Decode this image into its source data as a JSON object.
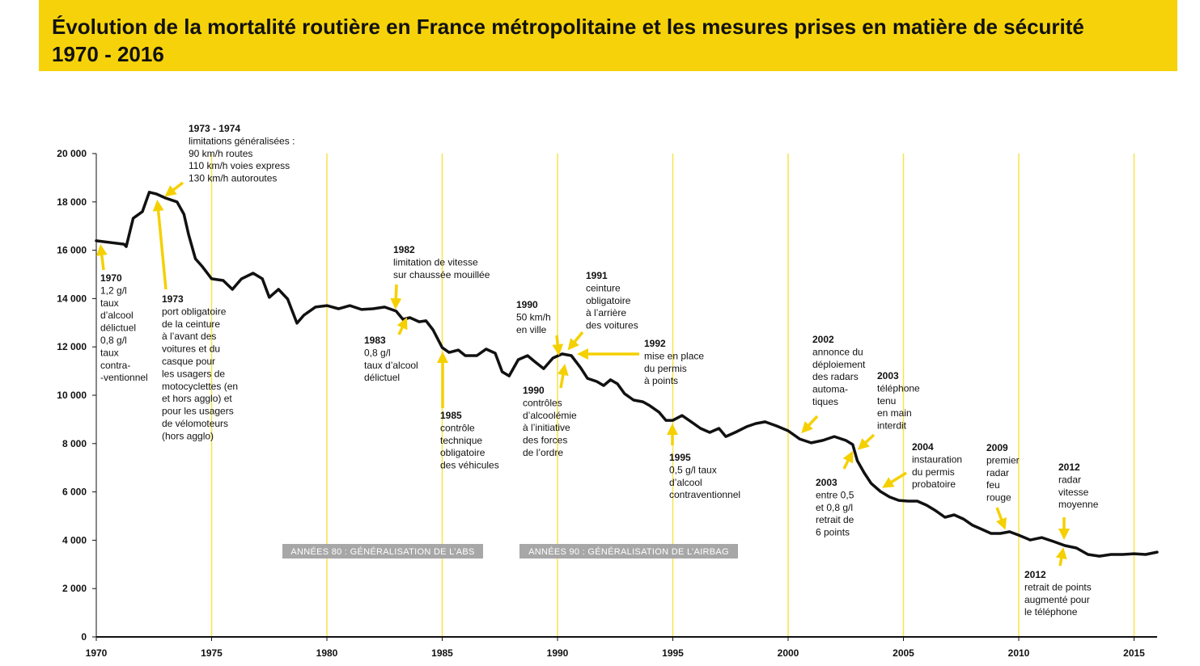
{
  "chart_data": {
    "type": "line",
    "title": "Évolution de la mortalité routière en France métropolitaine et les mesures prises en matière de sécurité",
    "subtitle": "1970 - 2016",
    "color": "#111111",
    "grid_color": "#f7e34a",
    "grid": true,
    "xlim": [
      1970,
      2016
    ],
    "xticks": [
      1970,
      1975,
      1980,
      1985,
      1990,
      1995,
      2000,
      2005,
      2010,
      2015
    ],
    "ylim": [
      0,
      20000
    ],
    "yticks": [
      0,
      {
        "value": 2000,
        "label": "2 000"
      },
      {
        "value": 4000,
        "label": "4 000"
      },
      {
        "value": 6000,
        "label": "6 000"
      },
      {
        "value": 8000,
        "label": "8 000"
      },
      {
        "value": 10000,
        "label": "10 000"
      },
      {
        "value": 12000,
        "label": "12 000"
      },
      {
        "value": 14000,
        "label": "14 000"
      },
      {
        "value": 16000,
        "label": "16 000"
      },
      {
        "value": 18000,
        "label": "18 000"
      },
      {
        "value": 20000,
        "label": "20 000"
      }
    ],
    "x": [
      1970,
      1971.2,
      1971.3,
      1971.6,
      1972,
      1972.3,
      1972.6,
      1973,
      1973.5,
      1973.8,
      1974,
      1974.3,
      1974.6,
      1975,
      1975.5,
      1975.9,
      1976.3,
      1976.8,
      1977.2,
      1977.5,
      1977.9,
      1978.3,
      1978.7,
      1979,
      1979.5,
      1980,
      1980.5,
      1981,
      1981.5,
      1982,
      1982.5,
      1983,
      1983.3,
      1983.6,
      1984,
      1984.3,
      1984.6,
      1985,
      1985.3,
      1985.7,
      1986,
      1986.5,
      1986.9,
      1987.3,
      1987.6,
      1987.9,
      1988.3,
      1988.7,
      1989,
      1989.4,
      1989.8,
      1990.2,
      1990.6,
      1991,
      1991.3,
      1991.7,
      1992,
      1992.3,
      1992.6,
      1992.9,
      1993.3,
      1993.7,
      1994,
      1994.4,
      1994.7,
      1995,
      1995.4,
      1995.8,
      1996.2,
      1996.6,
      1997,
      1997.3,
      1997.7,
      1998.2,
      1998.6,
      1999,
      1999.5,
      2000,
      2000.5,
      2001,
      2001.5,
      2002,
      2002.5,
      2002.8,
      2003,
      2003.3,
      2003.6,
      2004,
      2004.4,
      2004.8,
      2005.2,
      2005.6,
      2006,
      2006.4,
      2006.8,
      2007.2,
      2007.6,
      2008,
      2008.4,
      2008.8,
      2009.2,
      2009.6,
      2010,
      2010.5,
      2011,
      2011.5,
      2012,
      2012.5,
      2013,
      2013.5,
      2014,
      2014.5,
      2015,
      2015.5,
      2016
    ],
    "values": [
      16390,
      16250,
      16150,
      17320,
      17600,
      18400,
      18330,
      18160,
      18000,
      17490,
      16660,
      15650,
      15320,
      14820,
      14750,
      14380,
      14820,
      15050,
      14820,
      14050,
      14380,
      13980,
      12980,
      13310,
      13650,
      13710,
      13580,
      13710,
      13550,
      13580,
      13650,
      13480,
      13140,
      13210,
      13040,
      13080,
      12710,
      11970,
      11770,
      11870,
      11640,
      11640,
      11910,
      11740,
      10970,
      10800,
      11470,
      11640,
      11400,
      11100,
      11540,
      11710,
      11640,
      11140,
      10700,
      10570,
      10400,
      10640,
      10470,
      10070,
      9800,
      9730,
      9570,
      9300,
      8960,
      8960,
      9160,
      8900,
      8630,
      8460,
      8630,
      8290,
      8460,
      8700,
      8830,
      8900,
      8730,
      8530,
      8190,
      8030,
      8130,
      8290,
      8130,
      7960,
      7290,
      6790,
      6350,
      6020,
      5790,
      5650,
      5620,
      5620,
      5450,
      5220,
      4950,
      5050,
      4880,
      4620,
      4450,
      4280,
      4280,
      4350,
      4210,
      4010,
      4110,
      3950,
      3780,
      3680,
      3410,
      3340,
      3410,
      3410,
      3440,
      3410,
      3510
    ],
    "bands": [
      "ANNÉES 80 : GÉNÉRALISATION DE L’ABS",
      "ANNÉES 90 : GÉNÉRALISATION DE L’AIRBAG"
    ],
    "annotations": [
      {
        "label": "1970",
        "text": [
          "1,2 g/l",
          "taux",
          "d’alcool",
          "délictuel",
          "0,8 g/l",
          "taux",
          "contra-",
          "-ventionnel"
        ]
      },
      {
        "label": "1973 - 1974",
        "text": [
          "limitations généralisées :",
          "90 km/h routes",
          "110 km/h voies express",
          "130 km/h autoroutes"
        ]
      },
      {
        "label": "1973",
        "text": [
          "port obligatoire",
          "de la ceinture",
          "à l’avant des",
          "voitures et du",
          "casque pour",
          "les usagers de",
          "motocyclettes (en",
          "et hors agglo) et",
          "pour les usagers",
          "de vélomoteurs",
          "(hors agglo)"
        ]
      },
      {
        "label": "1982",
        "text": [
          "limitation de vitesse",
          "sur chaussée mouillée"
        ]
      },
      {
        "label": "1983",
        "text": [
          "0,8 g/l",
          "taux d’alcool",
          "délictuel"
        ]
      },
      {
        "label": "1985",
        "text": [
          "contrôle",
          "technique",
          "obligatoire",
          "des véhicules"
        ]
      },
      {
        "label": "1990",
        "text": [
          "50 km/h",
          "en ville"
        ]
      },
      {
        "label": "1990",
        "text": [
          "contrôles",
          "d’alcoolémie",
          "à l’initiative",
          "des forces",
          "de l’ordre"
        ]
      },
      {
        "label": "1991",
        "text": [
          "ceinture",
          "obligatoire",
          "à l’arrière",
          "des voitures"
        ]
      },
      {
        "label": "1992",
        "text": [
          "mise en place",
          "du permis",
          "à points"
        ]
      },
      {
        "label": "1995",
        "text": [
          "0,5 g/l taux",
          "d’alcool",
          "contraventionnel"
        ]
      },
      {
        "label": "2002",
        "text": [
          "annonce du",
          "déploiement",
          "des radars",
          "automa-",
          "tiques"
        ]
      },
      {
        "label": "2003",
        "text": [
          "téléphone",
          "tenu",
          "en main",
          "interdit"
        ]
      },
      {
        "label": "2003",
        "text": [
          "entre 0,5",
          "et 0,8 g/l",
          "retrait de",
          "6 points"
        ]
      },
      {
        "label": "2004",
        "text": [
          "instauration",
          "du permis",
          "probatoire"
        ]
      },
      {
        "label": "2009",
        "text": [
          "premier",
          "radar",
          "feu",
          "rouge"
        ]
      },
      {
        "label": "2012",
        "text": [
          "radar",
          "vitesse",
          "moyenne"
        ]
      },
      {
        "label": "2012",
        "text": [
          "retrait de points",
          "augmenté pour",
          "le téléphone"
        ]
      }
    ]
  }
}
